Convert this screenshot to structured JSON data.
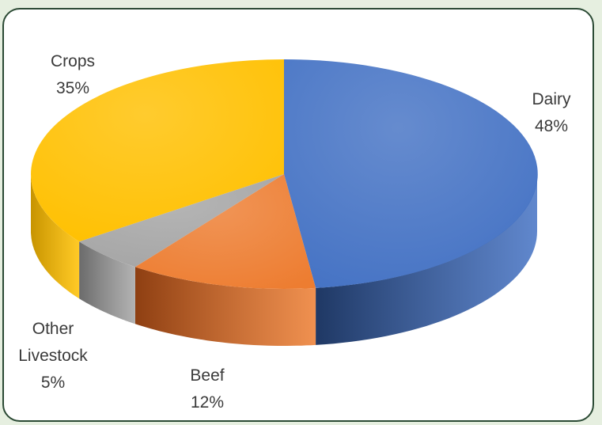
{
  "chart_data": {
    "type": "pie",
    "style": "3d",
    "title": "",
    "slices": [
      {
        "label": [
          "Dairy"
        ],
        "percent_label": "48%",
        "value": 48,
        "color": "#4472c4",
        "side_color": "#1f3864"
      },
      {
        "label": [
          "Beef"
        ],
        "percent_label": "12%",
        "value": 12,
        "color": "#ed7d31",
        "side_color": "#8e3f12"
      },
      {
        "label": [
          "Other",
          "Livestock"
        ],
        "percent_label": "5%",
        "value": 5,
        "color": "#a5a5a5",
        "side_color": "#6b6b6b"
      },
      {
        "label": [
          "Crops"
        ],
        "percent_label": "35%",
        "value": 35,
        "color": "#ffc000",
        "side_color": "#c79400"
      }
    ]
  }
}
